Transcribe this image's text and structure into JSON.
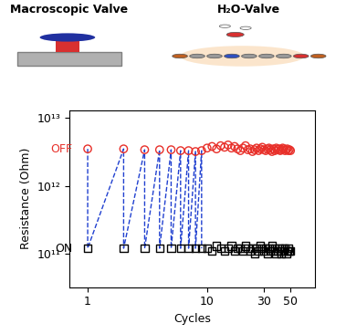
{
  "chart_data": {
    "type": "scatter",
    "annotations": [
      "Macroscopic Valve",
      "H₂O-Valve"
    ],
    "x_label": "Cycles",
    "y_label": "Resistance (Ohm)",
    "log": true,
    "xlim": [
      0.7,
      80
    ],
    "xticks": [
      1,
      10,
      30,
      50
    ],
    "ylim": [
      32000000000.0,
      13000000000000.0
    ],
    "yticks": [
      {
        "value": 100000000000.0,
        "label": "10¹¹"
      },
      {
        "value": 1000000000000.0,
        "label": "10¹²"
      },
      {
        "value": 10000000000000.0,
        "label": "10¹³"
      }
    ],
    "series": [
      {
        "type": "line",
        "color": "#2040d0",
        "line_style": "dashed",
        "x": [
          1,
          1,
          2,
          2,
          3,
          3,
          4,
          4,
          5,
          5,
          6,
          6,
          7,
          7,
          8,
          8,
          9,
          9
        ],
        "values": [
          3500000000000.0,
          120000000000.0,
          3500000000000.0,
          120000000000.0,
          3400000000000.0,
          120000000000.0,
          3400000000000.0,
          120000000000.0,
          3400000000000.0,
          120000000000.0,
          3300000000000.0,
          120000000000.0,
          3300000000000.0,
          120000000000.0,
          3200000000000.0,
          120000000000.0,
          3300000000000.0,
          120000000000.0
        ]
      },
      {
        "name": "OFF",
        "color": "#e8302a",
        "marker": "circle",
        "x": [
          1,
          2,
          3,
          4,
          5,
          6,
          7,
          8,
          9,
          10,
          11,
          12,
          13,
          14,
          15,
          16,
          17,
          18,
          19,
          20,
          21,
          22,
          23,
          24,
          25,
          26,
          27,
          28,
          29,
          30,
          31,
          32,
          33,
          34,
          35,
          36,
          37,
          38,
          39,
          40,
          41,
          42,
          43,
          44,
          45,
          46,
          47,
          48,
          49,
          50
        ],
        "values": [
          3500000000000.0,
          3500000000000.0,
          3400000000000.0,
          3400000000000.0,
          3400000000000.0,
          3300000000000.0,
          3300000000000.0,
          3200000000000.0,
          3300000000000.0,
          3600000000000.0,
          3800000000000.0,
          3500000000000.0,
          3900000000000.0,
          3700000000000.0,
          4000000000000.0,
          3600000000000.0,
          3800000000000.0,
          3500000000000.0,
          3300000000000.0,
          3600000000000.0,
          3900000000000.0,
          3400000000000.0,
          3500000000000.0,
          3200000000000.0,
          3400000000000.0,
          3600000000000.0,
          3300000000000.0,
          3500000000000.0,
          3700000000000.0,
          3400000000000.0,
          3300000000000.0,
          3500000000000.0,
          3600000000000.0,
          3400000000000.0,
          3200000000000.0,
          3500000000000.0,
          3300000000000.0,
          3600000000000.0,
          3400000000000.0,
          3500000000000.0,
          3300000000000.0,
          3400000000000.0,
          3600000000000.0,
          3500000000000.0,
          3300000000000.0,
          3400000000000.0,
          3500000000000.0,
          3300000000000.0,
          3400000000000.0,
          3300000000000.0
        ]
      },
      {
        "name": "ON",
        "color": "#000000",
        "marker": "square",
        "x": [
          1,
          2,
          3,
          4,
          5,
          6,
          7,
          8,
          9,
          10,
          11,
          12,
          13,
          14,
          15,
          16,
          17,
          18,
          19,
          20,
          21,
          22,
          23,
          24,
          25,
          26,
          27,
          28,
          29,
          30,
          31,
          32,
          33,
          34,
          35,
          36,
          37,
          38,
          39,
          40,
          41,
          42,
          43,
          44,
          45,
          46,
          47,
          48,
          49,
          50
        ],
        "values": [
          120000000000.0,
          120000000000.0,
          120000000000.0,
          120000000000.0,
          120000000000.0,
          120000000000.0,
          120000000000.0,
          120000000000.0,
          120000000000.0,
          120000000000.0,
          110000000000.0,
          130000000000.0,
          120000000000.0,
          110000000000.0,
          120000000000.0,
          130000000000.0,
          110000000000.0,
          120000000000.0,
          120000000000.0,
          110000000000.0,
          130000000000.0,
          120000000000.0,
          110000000000.0,
          120000000000.0,
          100000000000.0,
          120000000000.0,
          110000000000.0,
          130000000000.0,
          120000000000.0,
          110000000000.0,
          120000000000.0,
          100000000000.0,
          120000000000.0,
          110000000000.0,
          130000000000.0,
          110000000000.0,
          120000000000.0,
          100000000000.0,
          110000000000.0,
          120000000000.0,
          110000000000.0,
          100000000000.0,
          120000000000.0,
          110000000000.0,
          120000000000.0,
          100000000000.0,
          110000000000.0,
          120000000000.0,
          110000000000.0,
          110000000000.0
        ]
      }
    ]
  }
}
